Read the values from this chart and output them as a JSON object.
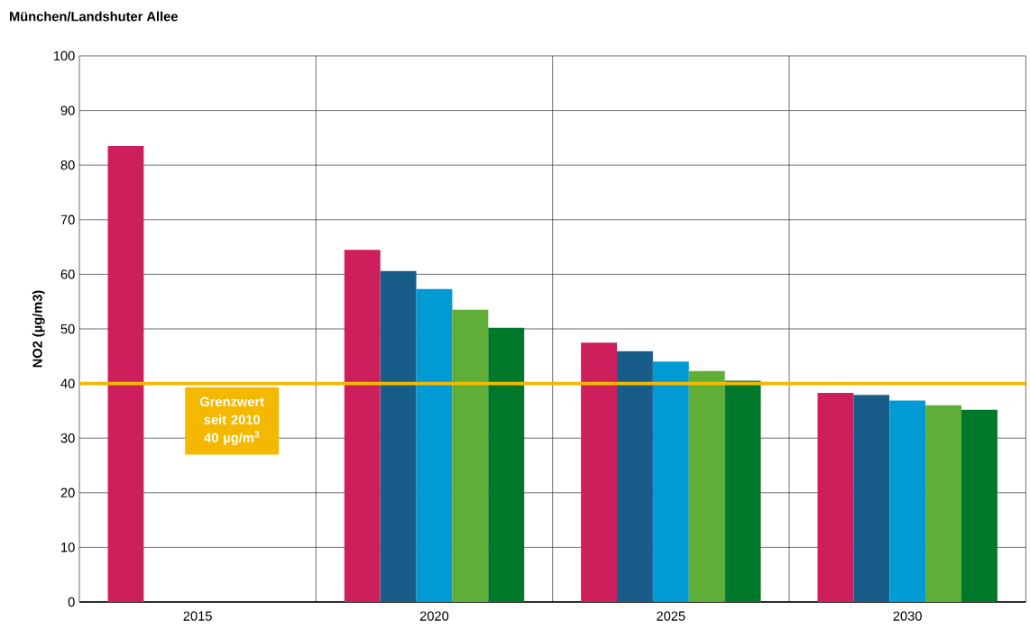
{
  "chart_data": {
    "type": "bar",
    "title": "München/Landshuter Allee",
    "ylabel": "NO2 (µg/m3)",
    "categories": [
      "2015",
      "2020",
      "2025",
      "2030"
    ],
    "series": [
      {
        "color": "#cc1f5c",
        "values": [
          83.5,
          64.5,
          47.5,
          38.3
        ]
      },
      {
        "color": "#185c8a",
        "values": [
          null,
          60.6,
          45.9,
          37.9
        ]
      },
      {
        "color": "#009ad4",
        "values": [
          null,
          57.3,
          44.0,
          36.9
        ]
      },
      {
        "color": "#5fae38",
        "values": [
          null,
          53.5,
          42.3,
          36.0
        ]
      },
      {
        "color": "#00782a",
        "values": [
          null,
          50.2,
          40.5,
          35.2
        ]
      }
    ],
    "ylim": [
      0,
      100
    ],
    "yticks": [
      0,
      10,
      20,
      30,
      40,
      50,
      60,
      70,
      80,
      90,
      100
    ],
    "grid": true,
    "ref_lines": [
      {
        "axis": "y",
        "value": 40,
        "label": "Grenzwert seit 2010 40 µg/m$^{3}$",
        "color": "#f5b800"
      }
    ]
  }
}
